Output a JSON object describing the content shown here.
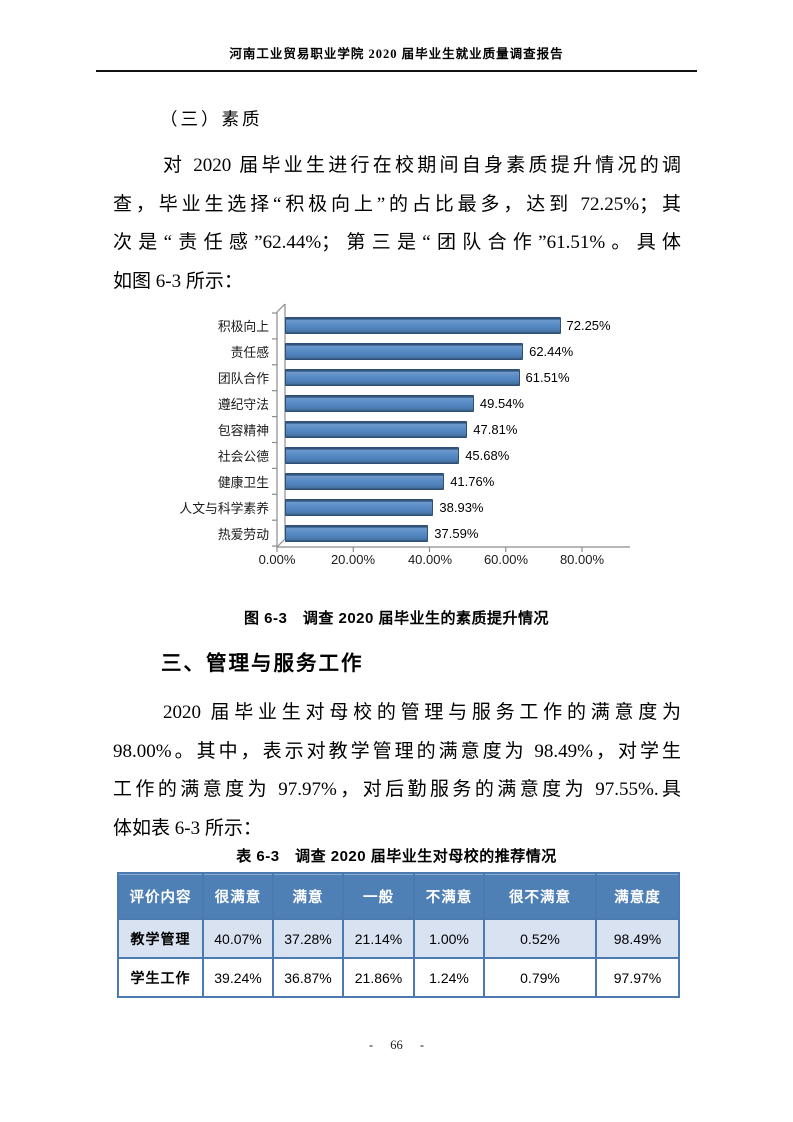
{
  "header": {
    "title": "河南工业贸易职业学院 2020 届毕业生就业质量调查报告"
  },
  "section_quality": {
    "heading": "（三）素质",
    "paragraph_lines": [
      "对 2020 届毕业生进行在校期间自身素质提升情况的调",
      "查，毕业生选择“积极向上”的占比最多，达到 72.25%；其",
      "次是“责任感”62.44%；第三是“团队合作”61.51%。具体",
      "如图 6-3 所示："
    ]
  },
  "chart_data": {
    "type": "bar",
    "orientation": "horizontal",
    "title": "图 6-3　调查 2020 届毕业生的素质提升情况",
    "categories": [
      "积极向上",
      "责任感",
      "团队合作",
      "遵纪守法",
      "包容精神",
      "社会公德",
      "健康卫生",
      "人文与科学素养",
      "热爱劳动"
    ],
    "values": [
      72.25,
      62.44,
      61.51,
      49.54,
      47.81,
      45.68,
      41.76,
      38.93,
      37.59
    ],
    "value_labels": [
      "72.25%",
      "62.44%",
      "61.51%",
      "49.54%",
      "47.81%",
      "45.68%",
      "41.76%",
      "38.93%",
      "37.59%"
    ],
    "x_ticks": [
      "0.00%",
      "20.00%",
      "40.00%",
      "60.00%",
      "80.00%"
    ],
    "xlim": [
      0,
      80
    ],
    "xlabel": "",
    "ylabel": "",
    "grid": false,
    "legend": false,
    "bar_color": "#4F81BD",
    "axis_color": "#8C8C8C"
  },
  "section_management": {
    "heading": "三、管理与服务工作",
    "paragraph_lines": [
      "2020 届毕业生对母校的管理与服务工作的满意度为",
      "98.00%。其中，表示对教学管理的满意度为 98.49%，对学生",
      "工作的满意度为 97.97%，对后勤服务的满意度为 97.55%.具",
      "体如表 6-3 所示："
    ]
  },
  "table": {
    "caption": "表 6-3　调查 2020 届毕业生对母校的推荐情况",
    "headers": [
      "评价内容",
      "很满意",
      "满意",
      "一般",
      "不满意",
      "很不满意",
      "满意度"
    ],
    "rows": [
      {
        "label": "教学管理",
        "values": [
          "40.07%",
          "37.28%",
          "21.14%",
          "1.00%",
          "0.52%",
          "98.49%"
        ]
      },
      {
        "label": "学生工作",
        "values": [
          "39.24%",
          "36.87%",
          "21.86%",
          "1.24%",
          "0.79%",
          "97.97%"
        ]
      }
    ],
    "colors": {
      "header_bg": "#4E7FB5",
      "alt_row_bg": "#D9E2F1",
      "border": "#4A7AB0"
    }
  },
  "footer": {
    "page_number": "- 66 -"
  }
}
